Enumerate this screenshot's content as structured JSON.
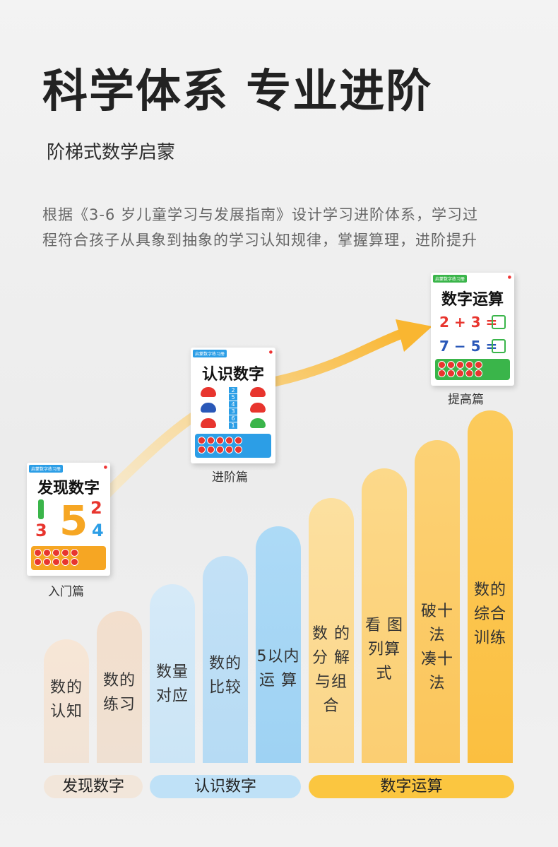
{
  "heading": {
    "title": "科学体系 专业进阶",
    "subtitle": "阶梯式数学启蒙",
    "description": "根据《3-6 岁儿童学习与发展指南》设计学习进阶体系，学习过程符合孩子从具象到抽象的学习认知规律，掌握算理，进阶提升"
  },
  "books": [
    {
      "caption": "入门篇",
      "title": "发现数字",
      "numbers": [
        "5",
        "2",
        "3",
        "4"
      ],
      "accent": "#f6a623"
    },
    {
      "caption": "进阶篇",
      "title": "认识数字",
      "numbers": [
        "2",
        "5",
        "4",
        "3",
        "6",
        "1"
      ],
      "accent": "#2c9ee6"
    },
    {
      "caption": "提高篇",
      "title": "数字运算",
      "eq1": "2 + 3 =",
      "eq2": "7 − 5 =",
      "accent": "#3ab54a"
    }
  ],
  "steps": [
    {
      "label": "数的\n认知",
      "color": "#f6e2d0"
    },
    {
      "label": "数的\n练习",
      "color": "#eedccb"
    },
    {
      "label": "数量\n对应",
      "color": "#cfe6f6"
    },
    {
      "label": "数的\n比较",
      "color": "#b9dcf5"
    },
    {
      "label": "5以内\n运 算",
      "color": "#a4d3f4"
    },
    {
      "label": "数 的\n分 解\n与组合",
      "color": "#fbd98a"
    },
    {
      "label": "看 图\n列算式",
      "color": "#fbd27a"
    },
    {
      "label": "破十法\n凑十法",
      "color": "#fbc95f"
    },
    {
      "label": "数的\n综合\n训练",
      "color": "#fbc244"
    }
  ],
  "bands": [
    {
      "label": "发现数字",
      "color": "#f2e6da"
    },
    {
      "label": "认识数字",
      "color": "#bfe1f7"
    },
    {
      "label": "数字运算",
      "color": "#fbc640"
    }
  ],
  "colors": {
    "arrow": "#f9bb3a"
  }
}
